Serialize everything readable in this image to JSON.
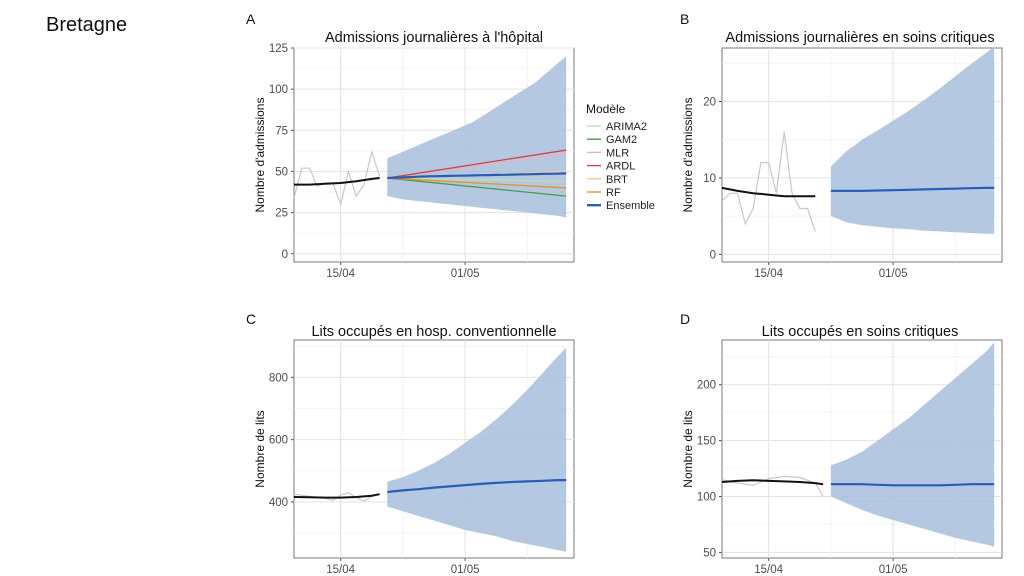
{
  "region_title": "Bretagne",
  "colors": {
    "band": "#a7bfdc",
    "observed_raw": "#c8c8c8",
    "observed_smooth": "#111111",
    "ensemble": "#2a5db8"
  },
  "legend": {
    "title": "Modèle",
    "entries": [
      {
        "name": "ARIMA2",
        "color": "#b8e0b0"
      },
      {
        "name": "GAM2",
        "color": "#4c9a4a"
      },
      {
        "name": "MLR",
        "color": "#e8b0c0"
      },
      {
        "name": "ARDL",
        "color": "#c84848"
      },
      {
        "name": "BRT",
        "color": "#f0c8a0"
      },
      {
        "name": "RF",
        "color": "#e89030"
      },
      {
        "name": "Ensemble",
        "color": "#2a5db8"
      }
    ]
  },
  "chart_data": [
    {
      "panel": "A",
      "type": "line",
      "title": "Admissions journalières à l'hôpital",
      "ylabel": "Nombre d'admissions",
      "xlim": [
        0,
        36
      ],
      "ylim": [
        -5,
        125
      ],
      "yticks": [
        0,
        25,
        50,
        75,
        100,
        125
      ],
      "xticks": [
        {
          "x": 6,
          "label": "15/04"
        },
        {
          "x": 22,
          "label": "01/05"
        }
      ],
      "observed_raw": [
        [
          0,
          34
        ],
        [
          1,
          52
        ],
        [
          2,
          52
        ],
        [
          3,
          41
        ],
        [
          4,
          43
        ],
        [
          5,
          43
        ],
        [
          6,
          30
        ],
        [
          7,
          50
        ],
        [
          8,
          35
        ],
        [
          9,
          42
        ],
        [
          10,
          62
        ],
        [
          11,
          47
        ]
      ],
      "observed_smooth": [
        [
          0,
          42
        ],
        [
          2,
          42
        ],
        [
          4,
          42.5
        ],
        [
          6,
          43
        ],
        [
          8,
          44
        ],
        [
          10,
          45.5
        ],
        [
          11,
          46
        ]
      ],
      "forecast": {
        "x": [
          12,
          13,
          14,
          15,
          16,
          17,
          18,
          19,
          20,
          21,
          22,
          23,
          24,
          25,
          26,
          27,
          28,
          29,
          30,
          31,
          32,
          33,
          34,
          35
        ],
        "lower": [
          35,
          34,
          33,
          32.5,
          32,
          31.5,
          31,
          30.5,
          30,
          29.5,
          29,
          28.5,
          28,
          27.5,
          27,
          26.5,
          26,
          25.5,
          25,
          24.5,
          24,
          23.5,
          23,
          22
        ],
        "upper": [
          58,
          60,
          62,
          64,
          66,
          68,
          70,
          72,
          74,
          76,
          78,
          80,
          83,
          86,
          89,
          92,
          95,
          98,
          101,
          104,
          108,
          112,
          116,
          120
        ],
        "ensemble": [
          46,
          46.2,
          46.4,
          46.6,
          46.8,
          47,
          47.1,
          47.2,
          47.3,
          47.4,
          47.5,
          47.6,
          47.7,
          47.8,
          47.9,
          48,
          48.1,
          48.2,
          48.3,
          48.4,
          48.5,
          48.6,
          48.7,
          48.8
        ],
        "models": [
          {
            "name": "ARIMA2",
            "values": [
              46,
              44
            ]
          },
          {
            "name": "GAM2",
            "values": [
              46,
              35
            ]
          },
          {
            "name": "MLR",
            "values": [
              46,
              61
            ]
          },
          {
            "name": "ARDL",
            "values": [
              46,
              63
            ]
          },
          {
            "name": "BRT",
            "values": [
              46,
              50
            ]
          },
          {
            "name": "RF",
            "values": [
              46,
              40
            ]
          }
        ]
      }
    },
    {
      "panel": "B",
      "type": "line",
      "title": "Admissions journalières en soins critiques",
      "ylabel": "Nombre d'admissions",
      "xlim": [
        0,
        36
      ],
      "ylim": [
        -1,
        27
      ],
      "yticks": [
        0,
        10,
        20
      ],
      "xticks": [
        {
          "x": 6,
          "label": "15/04"
        },
        {
          "x": 22,
          "label": "01/05"
        }
      ],
      "observed_raw": [
        [
          0,
          7
        ],
        [
          1,
          8
        ],
        [
          2,
          8
        ],
        [
          3,
          4
        ],
        [
          4,
          6
        ],
        [
          5,
          12
        ],
        [
          6,
          12
        ],
        [
          7,
          8
        ],
        [
          8,
          16
        ],
        [
          9,
          8
        ],
        [
          10,
          6
        ],
        [
          11,
          6
        ],
        [
          12,
          3
        ]
      ],
      "observed_smooth": [
        [
          0,
          8.7
        ],
        [
          2,
          8.3
        ],
        [
          4,
          8
        ],
        [
          6,
          7.8
        ],
        [
          8,
          7.6
        ],
        [
          10,
          7.6
        ],
        [
          12,
          7.6
        ]
      ],
      "forecast": {
        "x": [
          14,
          16,
          18,
          20,
          22,
          24,
          26,
          28,
          30,
          32,
          34,
          35
        ],
        "lower": [
          5,
          4.2,
          3.8,
          3.6,
          3.4,
          3.3,
          3.1,
          3,
          2.9,
          2.8,
          2.7,
          2.7
        ],
        "upper": [
          11.5,
          13.5,
          15,
          16.2,
          17.5,
          18.8,
          20.2,
          21.7,
          23.3,
          24.9,
          26.4,
          27.2
        ],
        "ensemble": [
          8.3,
          8.3,
          8.3,
          8.35,
          8.4,
          8.45,
          8.5,
          8.55,
          8.6,
          8.65,
          8.7,
          8.7
        ]
      }
    },
    {
      "panel": "C",
      "type": "line",
      "title": "Lits occupés en hosp. conventionnelle",
      "ylabel": "Nombre de lits",
      "xlim": [
        0,
        36
      ],
      "ylim": [
        220,
        920
      ],
      "yticks": [
        400,
        600,
        800
      ],
      "xticks": [
        {
          "x": 6,
          "label": "15/04"
        },
        {
          "x": 22,
          "label": "01/05"
        }
      ],
      "observed_raw": [
        [
          0,
          425
        ],
        [
          2,
          418
        ],
        [
          4,
          412
        ],
        [
          5,
          405
        ],
        [
          6,
          422
        ],
        [
          7,
          430
        ],
        [
          8,
          414
        ],
        [
          9,
          402
        ],
        [
          10,
          418
        ],
        [
          11,
          426
        ]
      ],
      "observed_smooth": [
        [
          0,
          416
        ],
        [
          2,
          415
        ],
        [
          4,
          414
        ],
        [
          6,
          414
        ],
        [
          8,
          416
        ],
        [
          10,
          420
        ],
        [
          11,
          425
        ]
      ],
      "forecast": {
        "x": [
          12,
          14,
          16,
          18,
          20,
          22,
          24,
          26,
          28,
          30,
          32,
          34,
          35
        ],
        "lower": [
          385,
          370,
          355,
          340,
          325,
          310,
          300,
          290,
          275,
          265,
          255,
          245,
          240
        ],
        "upper": [
          465,
          480,
          500,
          525,
          555,
          590,
          625,
          665,
          710,
          760,
          815,
          870,
          895
        ],
        "ensemble": [
          432,
          437,
          441,
          446,
          450,
          454,
          458,
          461,
          464,
          466,
          468,
          470,
          470
        ]
      }
    },
    {
      "panel": "D",
      "type": "line",
      "title": "Lits occupés en soins critiques",
      "ylabel": "Nombre de lits",
      "xlim": [
        0,
        36
      ],
      "ylim": [
        45,
        240
      ],
      "yticks": [
        50,
        100,
        150,
        200
      ],
      "xticks": [
        {
          "x": 6,
          "label": "15/04"
        },
        {
          "x": 22,
          "label": "01/05"
        }
      ],
      "observed_raw": [
        [
          0,
          115
        ],
        [
          2,
          112
        ],
        [
          3,
          111
        ],
        [
          4,
          110
        ],
        [
          5,
          113
        ],
        [
          6,
          116
        ],
        [
          8,
          118
        ],
        [
          10,
          117
        ],
        [
          12,
          112
        ],
        [
          13,
          100
        ]
      ],
      "observed_smooth": [
        [
          0,
          113
        ],
        [
          2,
          114
        ],
        [
          4,
          114.5
        ],
        [
          6,
          114
        ],
        [
          8,
          113.5
        ],
        [
          10,
          113
        ],
        [
          12,
          112
        ],
        [
          13,
          111
        ]
      ],
      "forecast": {
        "x": [
          14,
          16,
          18,
          20,
          22,
          24,
          26,
          28,
          30,
          32,
          34,
          35
        ],
        "lower": [
          100,
          94,
          88,
          83,
          79,
          75,
          71,
          67,
          63,
          60,
          57,
          55
        ],
        "upper": [
          128,
          133,
          140,
          150,
          160,
          170,
          182,
          194,
          206,
          218,
          230,
          238
        ],
        "ensemble": [
          111,
          111,
          111,
          110.5,
          110,
          110,
          110,
          110,
          110.5,
          111,
          111,
          111
        ]
      }
    }
  ]
}
